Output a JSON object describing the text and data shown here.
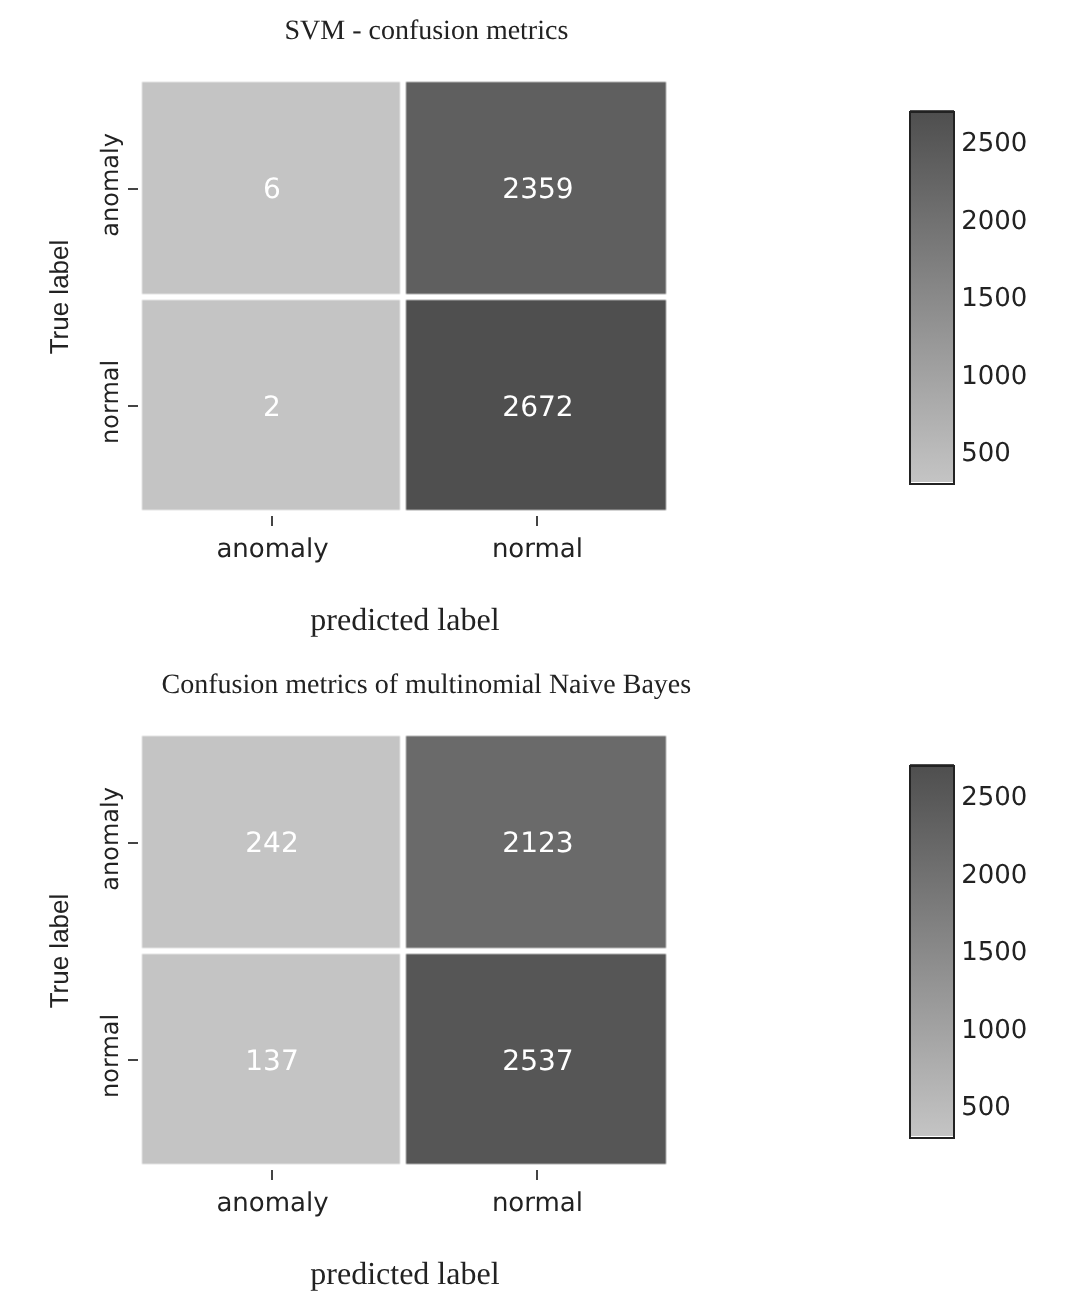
{
  "chart_data": [
    {
      "type": "heatmap",
      "title": "SVM - confusion metrics",
      "xlabel": "predicted label",
      "ylabel": "True label",
      "categories": [
        "anomaly",
        "normal"
      ],
      "y_categories": [
        "anomaly",
        "normal"
      ],
      "cells": [
        [
          6,
          2359
        ],
        [
          2,
          2672
        ]
      ],
      "data_labels": true,
      "clim": [
        300,
        2700
      ],
      "cticks": [
        500,
        1000,
        1500,
        2000,
        2500
      ]
    },
    {
      "type": "heatmap",
      "title": "Confusion metrics of multinomial Naive Bayes",
      "xlabel": "predicted label",
      "ylabel": "True label",
      "categories": [
        "anomaly",
        "normal"
      ],
      "y_categories": [
        "anomaly",
        "normal"
      ],
      "cells": [
        [
          242,
          2123
        ],
        [
          137,
          2537
        ]
      ],
      "data_labels": true,
      "clim": [
        300,
        2700
      ],
      "cticks": [
        500,
        1000,
        1500,
        2000,
        2500
      ]
    }
  ]
}
